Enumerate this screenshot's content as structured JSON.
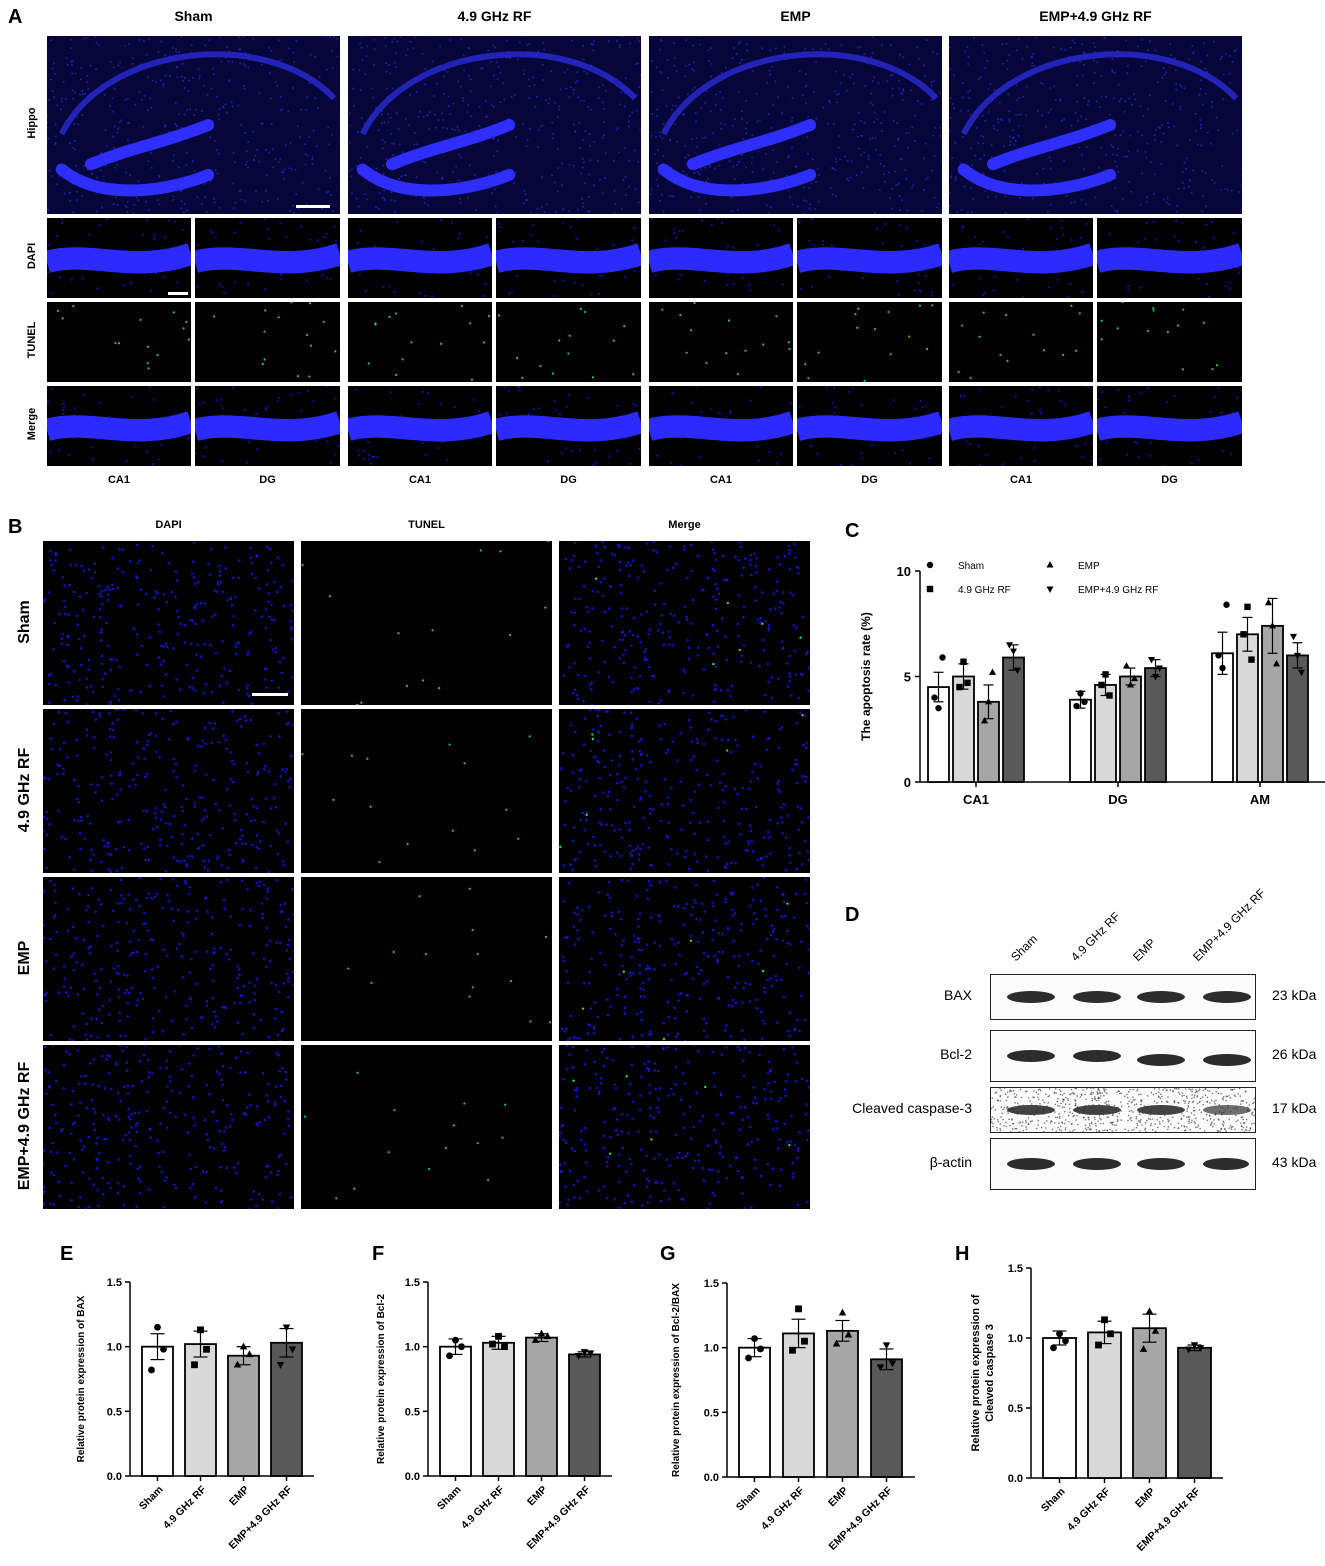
{
  "panel_letters": {
    "a": "A",
    "b": "B",
    "c": "C",
    "d": "D",
    "e": "E",
    "f": "F",
    "g": "G",
    "h": "H"
  },
  "panel_a": {
    "groups": [
      "Sham",
      "4.9 GHz RF",
      "EMP",
      "EMP+4.9 GHz RF"
    ],
    "row_labels": [
      "Hippo",
      "DAPI",
      "TUNEL",
      "Merge"
    ],
    "sub_labels": [
      "CA1",
      "DG"
    ]
  },
  "panel_b": {
    "columns": [
      "DAPI",
      "TUNEL",
      "Merge"
    ],
    "rows": [
      "Sham",
      "4.9 GHz RF",
      "EMP",
      "EMP+4.9 GHz RF"
    ]
  },
  "panel_d": {
    "lanes": [
      "Sham",
      "4.9 GHz RF",
      "EMP",
      "EMP+4.9 GHz RF"
    ],
    "blots": [
      {
        "protein": "BAX",
        "size": "23 kDa"
      },
      {
        "protein": "Bcl-2",
        "size": "26 kDa"
      },
      {
        "protein": "Cleaved caspase-3",
        "size": "17 kDa"
      },
      {
        "protein": "β-actin",
        "size": "43 kDa"
      }
    ]
  },
  "colors": {
    "dapi": "#1a1aff",
    "tunel": "#33dd44",
    "bar_fill": [
      "#ffffff",
      "#d9d9d9",
      "#a6a6a6",
      "#595959"
    ]
  },
  "chart_data": [
    {
      "id": "C",
      "type": "bar",
      "ylabel": "The apoptosis rate (%)",
      "ylim": [
        0,
        10
      ],
      "yticks": [
        0,
        5,
        10
      ],
      "categories": [
        "CA1",
        "DG",
        "AM"
      ],
      "legend": {
        "placement": "top",
        "markers": [
          "circle",
          "square",
          "triangle-up",
          "triangle-down"
        ]
      },
      "series": [
        {
          "name": "Sham",
          "values": [
            4.5,
            3.9,
            6.1
          ],
          "errors": [
            0.7,
            0.4,
            1.0
          ],
          "points": [
            [
              4.0,
              3.5,
              5.9
            ],
            [
              3.6,
              4.2,
              3.8
            ],
            [
              6.0,
              5.4,
              8.4
            ]
          ]
        },
        {
          "name": "4.9 GHz RF",
          "values": [
            5.0,
            4.6,
            7.0
          ],
          "errors": [
            0.6,
            0.5,
            0.8
          ],
          "points": [
            [
              4.5,
              5.7,
              4.7
            ],
            [
              4.6,
              5.1,
              4.1
            ],
            [
              7.0,
              8.3,
              5.8
            ]
          ]
        },
        {
          "name": "EMP",
          "values": [
            3.8,
            5.0,
            7.4
          ],
          "errors": [
            0.8,
            0.4,
            1.3
          ],
          "points": [
            [
              2.9,
              3.8,
              5.2
            ],
            [
              5.5,
              4.6,
              4.9
            ],
            [
              8.5,
              7.4,
              5.6
            ]
          ]
        },
        {
          "name": "EMP+4.9 GHz RF",
          "values": [
            5.9,
            5.4,
            6.0
          ],
          "errors": [
            0.6,
            0.4,
            0.6
          ],
          "points": [
            [
              6.5,
              6.2,
              5.3
            ],
            [
              5.8,
              5.0,
              5.4
            ],
            [
              6.9,
              6.0,
              5.2
            ]
          ]
        }
      ]
    },
    {
      "id": "E",
      "type": "bar",
      "ylabel": "Relative protein expression of BAX",
      "ylim": [
        0,
        1.5
      ],
      "yticks": [
        "0.0",
        "0.5",
        "1.0",
        "1.5"
      ],
      "categories": [
        "Sham",
        "4.9 GHz RF",
        "EMP",
        "EMP+4.9 GHz RF"
      ],
      "values": [
        1.0,
        1.02,
        0.93,
        1.03
      ],
      "errors": [
        0.1,
        0.1,
        0.07,
        0.11
      ],
      "points": [
        [
          1.15,
          0.98,
          0.82
        ],
        [
          1.13,
          0.98,
          0.86
        ],
        [
          1.0,
          0.94,
          0.86
        ],
        [
          1.15,
          0.98,
          0.86
        ]
      ]
    },
    {
      "id": "F",
      "type": "bar",
      "ylabel": "Relative protein expression of  Bcl-2",
      "ylim": [
        0,
        1.5
      ],
      "yticks": [
        "0.0",
        "0.5",
        "1.0",
        "1.5"
      ],
      "categories": [
        "Sham",
        "4.9 GHz RF",
        "EMP",
        "EMP+4.9 GHz RF"
      ],
      "values": [
        1.0,
        1.03,
        1.07,
        0.94
      ],
      "errors": [
        0.06,
        0.05,
        0.03,
        0.02
      ],
      "points": [
        [
          1.05,
          1.0,
          0.93
        ],
        [
          1.08,
          1.0,
          1.02
        ],
        [
          1.1,
          1.08,
          1.05
        ],
        [
          0.96,
          0.95,
          0.93
        ]
      ]
    },
    {
      "id": "G",
      "type": "bar",
      "ylabel": "Relative protein expression of Bcl-2/BAX",
      "ylim": [
        0,
        1.5
      ],
      "yticks": [
        "0.0",
        "0.5",
        "1.0",
        "1.5"
      ],
      "categories": [
        "Sham",
        "4.9 GHz RF",
        "EMP",
        "EMP+4.9 GHz RF"
      ],
      "values": [
        1.0,
        1.11,
        1.13,
        0.91
      ],
      "errors": [
        0.07,
        0.11,
        0.08,
        0.08
      ],
      "points": [
        [
          1.07,
          0.99,
          0.92
        ],
        [
          1.3,
          1.05,
          0.98
        ],
        [
          1.27,
          1.1,
          1.03
        ],
        [
          1.02,
          0.88,
          0.85
        ]
      ]
    },
    {
      "id": "H",
      "type": "bar",
      "ylabel": "Relative protein expression of Cleaved caspase 3",
      "ylim": [
        0,
        1.5
      ],
      "yticks": [
        "0.0",
        "0.5",
        "1.0",
        "1.5"
      ],
      "categories": [
        "Sham",
        "4.9 GHz RF",
        "EMP",
        "EMP+4.9 GHz RF"
      ],
      "values": [
        1.0,
        1.04,
        1.07,
        0.93
      ],
      "errors": [
        0.05,
        0.08,
        0.1,
        0.02
      ],
      "points": [
        [
          1.03,
          0.98,
          0.93
        ],
        [
          1.13,
          1.03,
          0.95
        ],
        [
          1.19,
          1.05,
          0.92
        ],
        [
          0.95,
          0.93,
          0.92
        ]
      ]
    }
  ]
}
